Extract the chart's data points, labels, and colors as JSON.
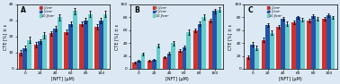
{
  "categories": [
    0,
    20,
    40,
    60,
    80,
    100
  ],
  "xlabel": "[NFT] (μM)",
  "ylabel": "CTE [%] ± ε",
  "bg_color": "#dce9f5",
  "panel_A": {
    "title": "A",
    "legend_labels": [
      "5 J/cm²",
      "6 J/cm²",
      "10 J/cm²"
    ],
    "colors": [
      "#d0312d",
      "#2255aa",
      "#66cccc"
    ],
    "ylim": [
      0,
      40
    ],
    "yticks": [
      0,
      10,
      20,
      30,
      40
    ],
    "data": {
      "red": [
        10,
        15,
        22,
        23,
        28,
        26
      ],
      "blue": [
        13,
        17,
        25,
        28,
        30,
        30
      ],
      "cyan": [
        18,
        21,
        32,
        36,
        34,
        34
      ]
    },
    "errors": {
      "red": [
        1.5,
        1.5,
        1.5,
        1.5,
        1.5,
        1.5
      ],
      "blue": [
        1.5,
        1.5,
        1.5,
        1.5,
        1.5,
        1.5
      ],
      "cyan": [
        2.0,
        2.0,
        2.0,
        2.0,
        2.0,
        2.0
      ]
    }
  },
  "panel_B": {
    "title": "B",
    "legend_labels": [
      "5 J/cm²",
      "6 J/cm²",
      "10 J/cm²"
    ],
    "colors": [
      "#d0312d",
      "#2255aa",
      "#66cccc"
    ],
    "ylim": [
      0,
      100
    ],
    "yticks": [
      0,
      20,
      40,
      60,
      80,
      100
    ],
    "data": {
      "red": [
        10,
        12,
        18,
        28,
        60,
        75
      ],
      "blue": [
        12,
        14,
        24,
        33,
        70,
        90
      ],
      "cyan": [
        23,
        36,
        40,
        57,
        80,
        92
      ]
    },
    "errors": {
      "red": [
        1.5,
        1.5,
        1.5,
        2.0,
        2.5,
        3.0
      ],
      "blue": [
        1.5,
        1.5,
        2.0,
        2.5,
        3.0,
        3.5
      ],
      "cyan": [
        2.5,
        3.0,
        3.5,
        4.0,
        4.0,
        3.5
      ]
    }
  },
  "panel_C": {
    "title": "C",
    "legend_labels": [
      "5 J/cm²",
      "6 J/cm²",
      "10 J/cm²"
    ],
    "colors": [
      "#d0312d",
      "#2255aa",
      "#66cccc"
    ],
    "ylim": [
      0,
      100
    ],
    "yticks": [
      0,
      20,
      40,
      60,
      80,
      100
    ],
    "data": {
      "red": [
        18,
        45,
        65,
        72,
        75,
        78
      ],
      "blue": [
        38,
        68,
        78,
        80,
        82,
        83
      ],
      "cyan": [
        32,
        56,
        70,
        76,
        78,
        80
      ]
    },
    "errors": {
      "red": [
        2.5,
        3.0,
        2.5,
        2.5,
        2.5,
        2.5
      ],
      "blue": [
        3.0,
        3.0,
        2.5,
        2.5,
        2.5,
        2.5
      ],
      "cyan": [
        3.5,
        3.5,
        3.0,
        3.0,
        2.5,
        2.5
      ]
    }
  }
}
